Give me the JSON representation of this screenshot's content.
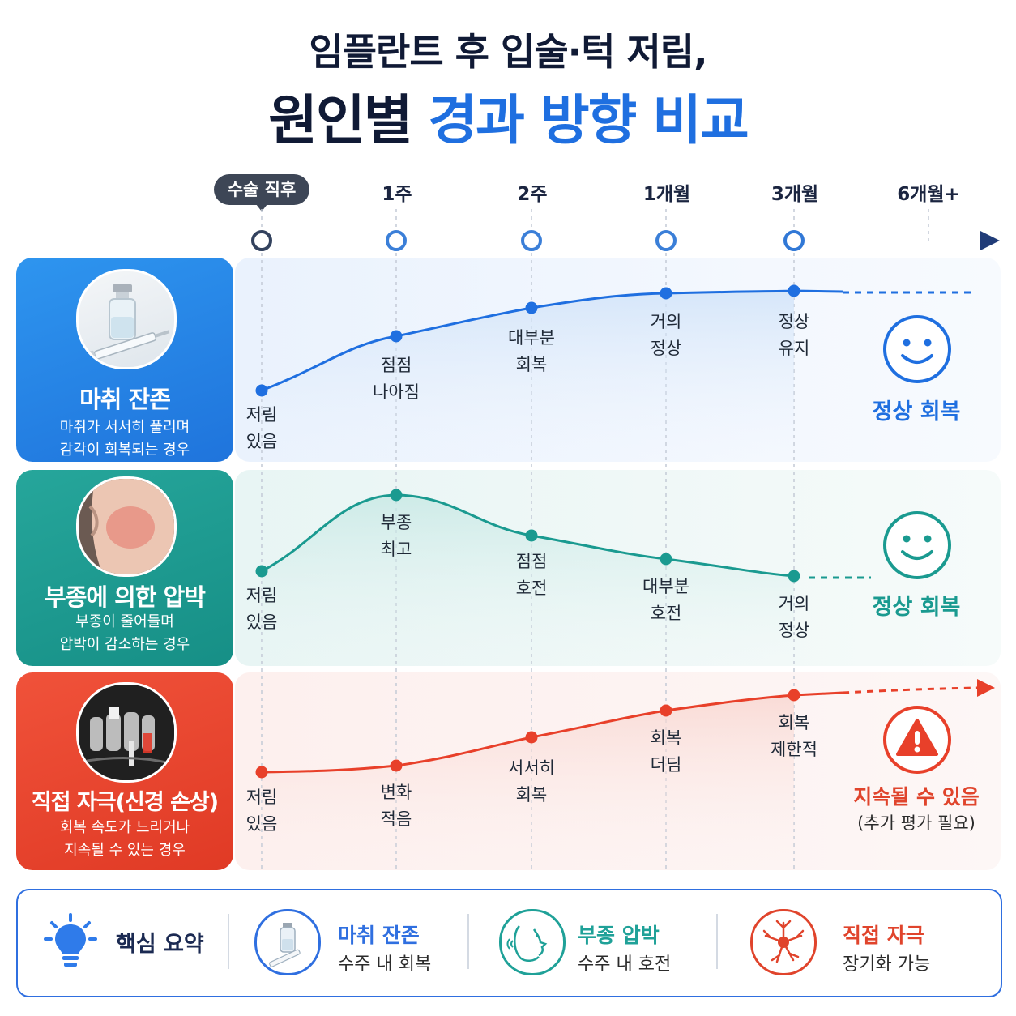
{
  "title": {
    "line1": "임플란트 후 입술·턱 저림,",
    "line2_dark": "원인별",
    "line2_blue": "경과 방향 비교"
  },
  "timeline": {
    "labels": [
      "수술 직후",
      "1주",
      "2주",
      "1개월",
      "3개월",
      "6개월+"
    ]
  },
  "rows": [
    {
      "title": "마취 잔존",
      "subtitle_line1": "마취가 서서히 풀리며",
      "subtitle_line2": "감각이 회복되는 경우",
      "icon": "vial-syringe-photo",
      "color": "#2f86e6",
      "points": [
        {
          "l1": "저림",
          "l2": "있음"
        },
        {
          "l1": "점점",
          "l2": "나아짐"
        },
        {
          "l1": "대부분",
          "l2": "회복"
        },
        {
          "l1": "거의",
          "l2": "정상"
        },
        {
          "l1": "정상",
          "l2": "유지"
        }
      ],
      "outcome": "정상 회복",
      "outcome_sub": "",
      "outcome_icon": "smile-icon"
    },
    {
      "title": "부종에 의한 압박",
      "subtitle_line1": "부종이 줄어들며",
      "subtitle_line2": "압박이 감소하는 경우",
      "icon": "swollen-cheek-photo",
      "color": "#1fa198",
      "points": [
        {
          "l1": "저림",
          "l2": "있음"
        },
        {
          "l1": "부종",
          "l2": "최고"
        },
        {
          "l1": "점점",
          "l2": "호전"
        },
        {
          "l1": "대부분",
          "l2": "호전"
        },
        {
          "l1": "거의",
          "l2": "정상"
        }
      ],
      "outcome": "정상 회복",
      "outcome_sub": "",
      "outcome_icon": "smile-icon"
    },
    {
      "title": "직접 자극(신경 손상)",
      "subtitle_line1": "회복 속도가 느리거나",
      "subtitle_line2": "지속될 수 있는 경우",
      "icon": "dental-xray-photo",
      "color": "#ea4a32",
      "points": [
        {
          "l1": "저림",
          "l2": "있음"
        },
        {
          "l1": "변화",
          "l2": "적음"
        },
        {
          "l1": "서서히",
          "l2": "회복"
        },
        {
          "l1": "회복",
          "l2": "더딤"
        },
        {
          "l1": "회복",
          "l2": "제한적"
        }
      ],
      "outcome": "지속될 수 있음",
      "outcome_sub": "(추가 평가 필요)",
      "outcome_icon": "warning-icon"
    }
  ],
  "summary": {
    "title": "핵심 요약",
    "title_icon": "lightbulb-icon",
    "items": [
      {
        "heading": "마취 잔존",
        "text": "수주 내 회복",
        "icon": "vial-icon",
        "color": "#2f6fe0"
      },
      {
        "heading": "부종 압박",
        "text": "수주 내 호전",
        "icon": "face-swelling-icon",
        "color": "#1fa198"
      },
      {
        "heading": "직접 자극",
        "text": "장기화 가능",
        "icon": "nerve-icon",
        "color": "#e0442c"
      }
    ]
  }
}
